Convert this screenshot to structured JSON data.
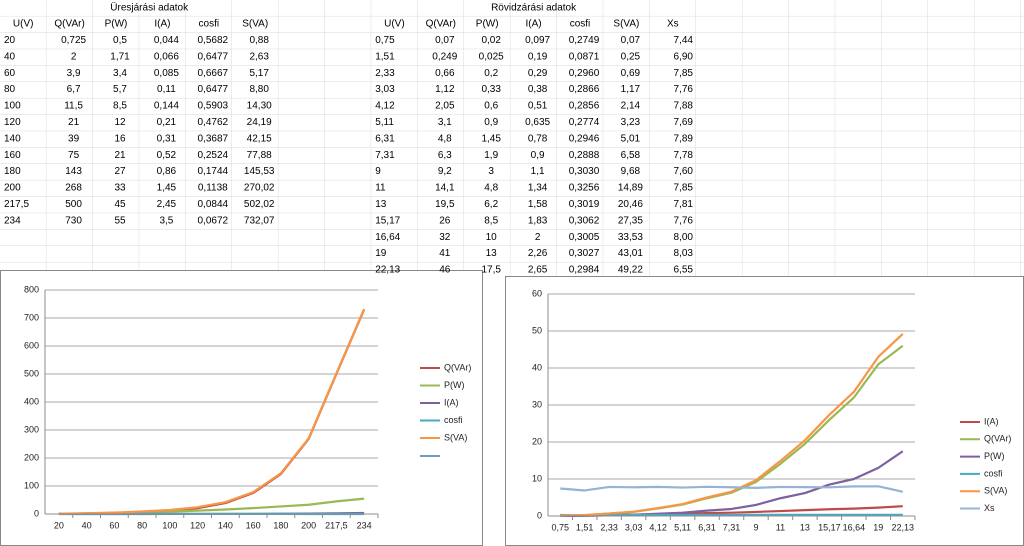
{
  "tables": [
    {
      "title": "Üresjárási adatok",
      "header": [
        "U(V)",
        "Q(VAr)",
        "P(W)",
        "I(A)",
        "cosfi",
        "S(VA)"
      ],
      "rows": [
        [
          "20",
          "0,725",
          "0,5",
          "0,044",
          "0,5682",
          "0,88"
        ],
        [
          "40",
          "2",
          "1,71",
          "0,066",
          "0,6477",
          "2,63"
        ],
        [
          "60",
          "3,9",
          "3,4",
          "0,085",
          "0,6667",
          "5,17"
        ],
        [
          "80",
          "6,7",
          "5,7",
          "0,11",
          "0,6477",
          "8,80"
        ],
        [
          "100",
          "11,5",
          "8,5",
          "0,144",
          "0,5903",
          "14,30"
        ],
        [
          "120",
          "21",
          "12",
          "0,21",
          "0,4762",
          "24,19"
        ],
        [
          "140",
          "39",
          "16",
          "0,31",
          "0,3687",
          "42,15"
        ],
        [
          "160",
          "75",
          "21",
          "0,52",
          "0,2524",
          "77,88"
        ],
        [
          "180",
          "143",
          "27",
          "0,86",
          "0,1744",
          "145,53"
        ],
        [
          "200",
          "268",
          "33",
          "1,45",
          "0,1138",
          "270,02"
        ],
        [
          "217,5",
          "500",
          "45",
          "2,45",
          "0,0844",
          "502,02"
        ],
        [
          "234",
          "730",
          "55",
          "3,5",
          "0,0672",
          "732,07"
        ]
      ]
    },
    {
      "title": "Rövidzárási adatok",
      "header": [
        "U(V)",
        "Q(VAr)",
        "P(W)",
        "I(A)",
        "cosfi",
        "S(VA)",
        "Xs"
      ],
      "rows": [
        [
          "0,75",
          "0,07",
          "0,02",
          "0,097",
          "0,2749",
          "0,07",
          "7,44"
        ],
        [
          "1,51",
          "0,249",
          "0,025",
          "0,19",
          "0,0871",
          "0,25",
          "6,90"
        ],
        [
          "2,33",
          "0,66",
          "0,2",
          "0,29",
          "0,2960",
          "0,69",
          "7,85"
        ],
        [
          "3,03",
          "1,12",
          "0,33",
          "0,38",
          "0,2866",
          "1,17",
          "7,76"
        ],
        [
          "4,12",
          "2,05",
          "0,6",
          "0,51",
          "0,2856",
          "2,14",
          "7,88"
        ],
        [
          "5,11",
          "3,1",
          "0,9",
          "0,635",
          "0,2774",
          "3,23",
          "7,69"
        ],
        [
          "6,31",
          "4,8",
          "1,45",
          "0,78",
          "0,2946",
          "5,01",
          "7,89"
        ],
        [
          "7,31",
          "6,3",
          "1,9",
          "0,9",
          "0,2888",
          "6,58",
          "7,78"
        ],
        [
          "9",
          "9,2",
          "3",
          "1,1",
          "0,3030",
          "9,68",
          "7,60"
        ],
        [
          "11",
          "14,1",
          "4,8",
          "1,34",
          "0,3256",
          "14,89",
          "7,85"
        ],
        [
          "13",
          "19,5",
          "6,2",
          "1,58",
          "0,3019",
          "20,46",
          "7,81"
        ],
        [
          "15,17",
          "26",
          "8,5",
          "1,83",
          "0,3062",
          "27,35",
          "7,76"
        ],
        [
          "16,64",
          "32",
          "10",
          "2",
          "0,3005",
          "33,53",
          "8,00"
        ],
        [
          "19",
          "41",
          "13",
          "2,26",
          "0,3027",
          "43,01",
          "8,03"
        ],
        [
          "22,13",
          "46",
          "17,5",
          "2,65",
          "0,2984",
          "49,22",
          "6,55"
        ]
      ]
    }
  ],
  "chart_data": [
    {
      "type": "line",
      "categories": [
        "20",
        "40",
        "60",
        "80",
        "100",
        "120",
        "140",
        "160",
        "180",
        "200",
        "217,5",
        "234"
      ],
      "series": [
        {
          "name": "Q(VAr)",
          "color": "#be4b48",
          "values": [
            0.725,
            2,
            3.9,
            6.7,
            11.5,
            21,
            39,
            75,
            143,
            268,
            500,
            730
          ]
        },
        {
          "name": "P(W)",
          "color": "#98b954",
          "values": [
            0.5,
            1.71,
            3.4,
            5.7,
            8.5,
            12,
            16,
            21,
            27,
            33,
            45,
            55
          ]
        },
        {
          "name": "I(A)",
          "color": "#7d60a0",
          "values": [
            0.044,
            0.066,
            0.085,
            0.11,
            0.144,
            0.21,
            0.31,
            0.52,
            0.86,
            1.45,
            2.45,
            3.5
          ]
        },
        {
          "name": "cosfi",
          "color": "#46aac5",
          "values": [
            0.5682,
            0.6477,
            0.6667,
            0.6477,
            0.5903,
            0.4762,
            0.3687,
            0.2524,
            0.1744,
            0.1138,
            0.0844,
            0.0672
          ]
        },
        {
          "name": "S(VA)",
          "color": "#f79646",
          "values": [
            0.88,
            2.63,
            5.17,
            8.8,
            14.3,
            24.19,
            42.15,
            77.88,
            145.53,
            270.02,
            502.02,
            732.07
          ]
        }
      ],
      "ylim": [
        0,
        800
      ],
      "yticks": [
        0,
        100,
        200,
        300,
        400,
        500,
        600,
        700,
        800
      ],
      "grid": true,
      "legend": "right"
    },
    {
      "type": "line",
      "categories": [
        "0,75",
        "1,51",
        "2,33",
        "3,03",
        "4,12",
        "5,11",
        "6,31",
        "7,31",
        "9",
        "11",
        "13",
        "15,17",
        "16,64",
        "19",
        "22,13"
      ],
      "series": [
        {
          "name": "I(A)",
          "color": "#be4b48",
          "values": [
            0.097,
            0.19,
            0.29,
            0.38,
            0.51,
            0.635,
            0.78,
            0.9,
            1.1,
            1.34,
            1.58,
            1.83,
            2,
            2.26,
            2.65
          ]
        },
        {
          "name": "Q(VAr)",
          "color": "#98b954",
          "values": [
            0.07,
            0.249,
            0.66,
            1.12,
            2.05,
            3.1,
            4.8,
            6.3,
            9.2,
            14.1,
            19.5,
            26,
            32,
            41,
            46
          ]
        },
        {
          "name": "P(W)",
          "color": "#7d60a0",
          "values": [
            0.02,
            0.025,
            0.2,
            0.33,
            0.6,
            0.9,
            1.45,
            1.9,
            3,
            4.8,
            6.2,
            8.5,
            10,
            13,
            17.5
          ]
        },
        {
          "name": "cosfi",
          "color": "#46aac5",
          "values": [
            0.2749,
            0.0871,
            0.296,
            0.2866,
            0.2856,
            0.2774,
            0.2946,
            0.2888,
            0.303,
            0.3256,
            0.3019,
            0.3062,
            0.3005,
            0.3027,
            0.2984
          ]
        },
        {
          "name": "S(VA)",
          "color": "#f79646",
          "values": [
            0.07,
            0.25,
            0.69,
            1.17,
            2.14,
            3.23,
            5.01,
            6.58,
            9.68,
            14.89,
            20.46,
            27.35,
            33.53,
            43.01,
            49.22
          ]
        },
        {
          "name": "Xs",
          "color": "#95b3d7",
          "values": [
            7.44,
            6.9,
            7.85,
            7.76,
            7.88,
            7.69,
            7.89,
            7.78,
            7.6,
            7.85,
            7.81,
            7.76,
            8.0,
            8.03,
            6.55
          ]
        }
      ],
      "ylim": [
        0,
        60
      ],
      "yticks": [
        0,
        10,
        20,
        30,
        40,
        50,
        60
      ],
      "grid": true,
      "legend": "right"
    }
  ]
}
